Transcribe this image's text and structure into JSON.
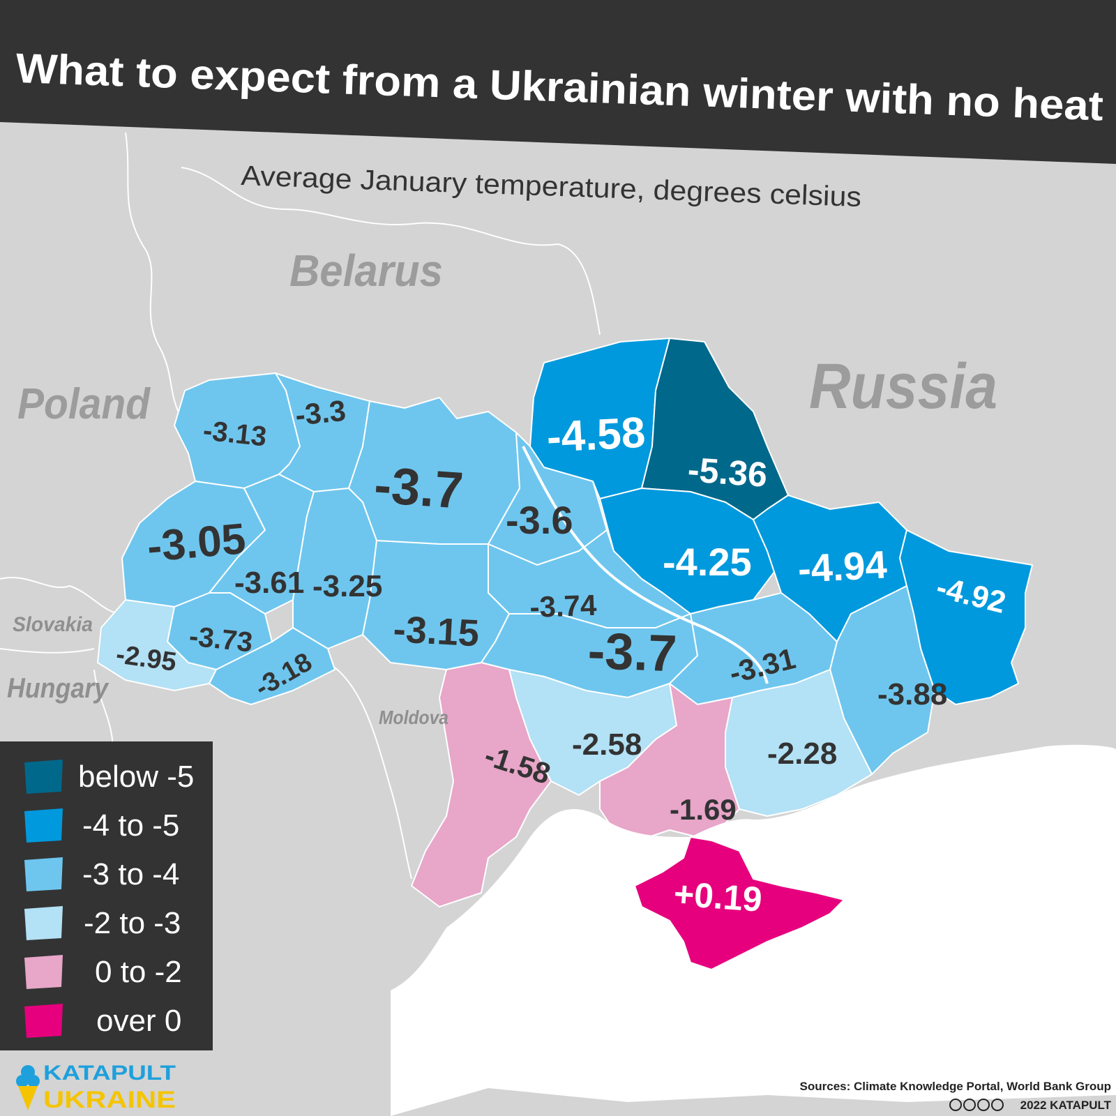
{
  "title": "What to expect from a Ukrainian winter with no heat",
  "subtitle": "Average January temperature, degrees celsius",
  "countries": {
    "belarus": "Belarus",
    "russia": "Russia",
    "poland": "Poland",
    "slovakia": "Slovakia",
    "hungary": "Hungary",
    "moldova": "Moldova"
  },
  "legend": [
    {
      "label": "below -5",
      "color": "#00688b"
    },
    {
      "label": "-4 to -5",
      "color": "#0099dd"
    },
    {
      "label": "-3 to -4",
      "color": "#6ec6ee"
    },
    {
      "label": "-2 to -3",
      "color": "#b3e1f5"
    },
    {
      "label": "0 to -2",
      "color": "#e8a6c9"
    },
    {
      "label": "over 0",
      "color": "#e6007e"
    }
  ],
  "regions": [
    {
      "value": "-3.13",
      "class": "-3 to -4"
    },
    {
      "value": "-3.3",
      "class": "-3 to -4"
    },
    {
      "value": "-3.7",
      "class": "-3 to -4"
    },
    {
      "value": "-3.6",
      "class": "-3 to -4"
    },
    {
      "value": "-4.58",
      "class": "-4 to -5"
    },
    {
      "value": "-5.36",
      "class": "below -5"
    },
    {
      "value": "-3.05",
      "class": "-3 to -4"
    },
    {
      "value": "-3.61",
      "class": "-3 to -4"
    },
    {
      "value": "-3.25",
      "class": "-3 to -4"
    },
    {
      "value": "-4.25",
      "class": "-4 to -5"
    },
    {
      "value": "-4.94",
      "class": "-4 to -5"
    },
    {
      "value": "-4.92",
      "class": "-4 to -5"
    },
    {
      "value": "-3.74",
      "class": "-3 to -4"
    },
    {
      "value": "-3.15",
      "class": "-3 to -4"
    },
    {
      "value": "-3.73",
      "class": "-3 to -4"
    },
    {
      "value": "-2.95",
      "class": "-2 to -3"
    },
    {
      "value": "-3.18",
      "class": "-3 to -4"
    },
    {
      "value": "-3.7",
      "class": "-3 to -4"
    },
    {
      "value": "-3.31",
      "class": "-3 to -4"
    },
    {
      "value": "-3.88",
      "class": "-3 to -4"
    },
    {
      "value": "-2.58",
      "class": "-2 to -3"
    },
    {
      "value": "-2.28",
      "class": "-2 to -3"
    },
    {
      "value": "-1.58",
      "class": "0 to -2"
    },
    {
      "value": "-1.69",
      "class": "0 to -2"
    },
    {
      "value": "+0.19",
      "class": "over 0"
    }
  ],
  "logo": {
    "line1": "KATAPULT",
    "line2": "UKRAINE"
  },
  "sources": "Sources: Climate Knowledge Portal, World Bank Group",
  "copyright": "2022 KATAPULT"
}
